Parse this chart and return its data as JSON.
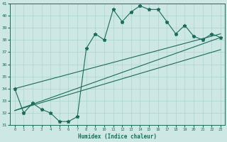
{
  "xlabel": "Humidex (Indice chaleur)",
  "background_color": "#cde8e4",
  "grid_color": "#aad4ce",
  "line_color": "#1a6b5a",
  "x": [
    0,
    1,
    2,
    3,
    4,
    5,
    6,
    7,
    8,
    9,
    10,
    11,
    12,
    13,
    14,
    15,
    16,
    17,
    18,
    19,
    20,
    21,
    22,
    23
  ],
  "y_zigzag": [
    34.0,
    32.0,
    32.8,
    32.3,
    32.0,
    31.3,
    31.3,
    31.7,
    37.3,
    38.5,
    38.0,
    40.5,
    39.5,
    40.3,
    40.8,
    40.5,
    40.5,
    39.5,
    38.5,
    39.2,
    38.3,
    38.0,
    38.5,
    38.2
  ],
  "trend1_x": [
    0,
    23
  ],
  "trend1_y": [
    32.2,
    37.2
  ],
  "trend2_x": [
    0,
    23
  ],
  "trend2_y": [
    32.2,
    38.2
  ],
  "trend3_x": [
    0,
    23
  ],
  "trend3_y": [
    34.0,
    38.5
  ],
  "ylim": [
    31,
    41
  ],
  "xlim": [
    -0.5,
    23.5
  ]
}
